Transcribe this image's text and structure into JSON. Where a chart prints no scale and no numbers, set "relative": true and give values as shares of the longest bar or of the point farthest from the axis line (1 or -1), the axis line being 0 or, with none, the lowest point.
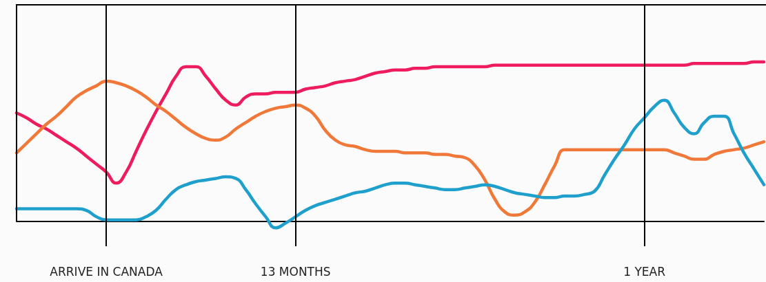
{
  "chart_data": {
    "type": "line",
    "relative": true,
    "marker": "none",
    "line_style": "solid",
    "grid": false,
    "categories": [
      null,
      null,
      null,
      null,
      null,
      null,
      null,
      null,
      null,
      "ARRIVE IN CANADA",
      null,
      null,
      null,
      null,
      null,
      null,
      null,
      null,
      null,
      null,
      null,
      null,
      null,
      null,
      null,
      null,
      null,
      null,
      "13 MONTHS",
      null,
      null,
      null,
      null,
      null,
      null,
      null,
      null,
      null,
      null,
      null,
      null,
      null,
      null,
      null,
      null,
      null,
      null,
      null,
      null,
      null,
      null,
      null,
      null,
      null,
      null,
      null,
      null,
      null,
      null,
      null,
      null,
      null,
      null,
      "1 YEAR",
      null,
      null,
      null,
      null,
      null,
      null,
      null,
      null,
      null,
      null,
      null,
      null
    ],
    "series": [
      {
        "color": "#ee1c5e",
        "values": [
          0.68,
          0.65,
          0.61,
          0.58,
          0.54,
          0.5,
          0.46,
          0.41,
          0.36,
          0.31,
          0.24,
          0.31,
          0.44,
          0.57,
          0.69,
          0.8,
          0.91,
          0.97,
          0.97,
          0.91,
          0.83,
          0.76,
          0.73,
          0.78,
          0.8,
          0.8,
          0.81,
          0.81,
          0.81,
          0.83,
          0.84,
          0.85,
          0.87,
          0.88,
          0.89,
          0.91,
          0.93,
          0.94,
          0.95,
          0.95,
          0.96,
          0.96,
          0.97,
          0.97,
          0.97,
          0.97,
          0.97,
          0.97,
          0.98,
          0.98,
          0.98,
          0.98,
          0.98,
          0.98,
          0.98,
          0.98,
          0.98,
          0.98,
          0.98,
          0.98,
          0.98,
          0.98,
          0.98,
          0.98,
          0.98,
          0.98,
          0.98,
          0.98,
          0.99,
          0.99,
          0.99,
          0.99,
          0.99,
          0.99,
          1,
          1
        ]
      },
      {
        "color": "#f07838",
        "values": [
          0.43,
          0.49,
          0.55,
          0.61,
          0.66,
          0.72,
          0.78,
          0.82,
          0.85,
          0.88,
          0.87,
          0.85,
          0.82,
          0.78,
          0.73,
          0.69,
          0.64,
          0.59,
          0.55,
          0.52,
          0.51,
          0.53,
          0.58,
          0.62,
          0.66,
          0.69,
          0.71,
          0.72,
          0.73,
          0.71,
          0.66,
          0.57,
          0.51,
          0.48,
          0.47,
          0.45,
          0.44,
          0.44,
          0.44,
          0.43,
          0.43,
          0.43,
          0.42,
          0.42,
          0.41,
          0.4,
          0.35,
          0.26,
          0.14,
          0.06,
          0.04,
          0.06,
          0.12,
          0.23,
          0.35,
          0.45,
          0.45,
          0.45,
          0.45,
          0.45,
          0.45,
          0.45,
          0.45,
          0.45,
          0.45,
          0.45,
          0.43,
          0.41,
          0.39,
          0.39,
          0.42,
          0.44,
          0.45,
          0.46,
          0.48,
          0.5
        ]
      },
      {
        "color": "#1fa0cc",
        "values": [
          0.08,
          0.08,
          0.08,
          0.08,
          0.08,
          0.08,
          0.08,
          0.07,
          0.03,
          0.01,
          0.01,
          0.01,
          0.01,
          0.03,
          0.07,
          0.14,
          0.2,
          0.23,
          0.25,
          0.26,
          0.27,
          0.28,
          0.27,
          0.2,
          0.11,
          0.03,
          -0.04,
          -0.01,
          0.03,
          0.07,
          0.1,
          0.12,
          0.14,
          0.16,
          0.18,
          0.19,
          0.21,
          0.23,
          0.24,
          0.24,
          0.23,
          0.22,
          0.21,
          0.2,
          0.2,
          0.21,
          0.22,
          0.23,
          0.22,
          0.2,
          0.18,
          0.17,
          0.16,
          0.15,
          0.15,
          0.16,
          0.16,
          0.17,
          0.19,
          0.29,
          0.39,
          0.48,
          0.58,
          0.65,
          0.72,
          0.76,
          0.68,
          0.59,
          0.55,
          0.62,
          0.66,
          0.66,
          0.55,
          0.43,
          0.33,
          0.23
        ]
      }
    ],
    "ref_lines": [
      {
        "axis": "x",
        "value": "ARRIVE IN CANADA"
      },
      {
        "axis": "x",
        "value": "13 MONTHS"
      },
      {
        "axis": "x",
        "value": "1 YEAR"
      }
    ]
  }
}
